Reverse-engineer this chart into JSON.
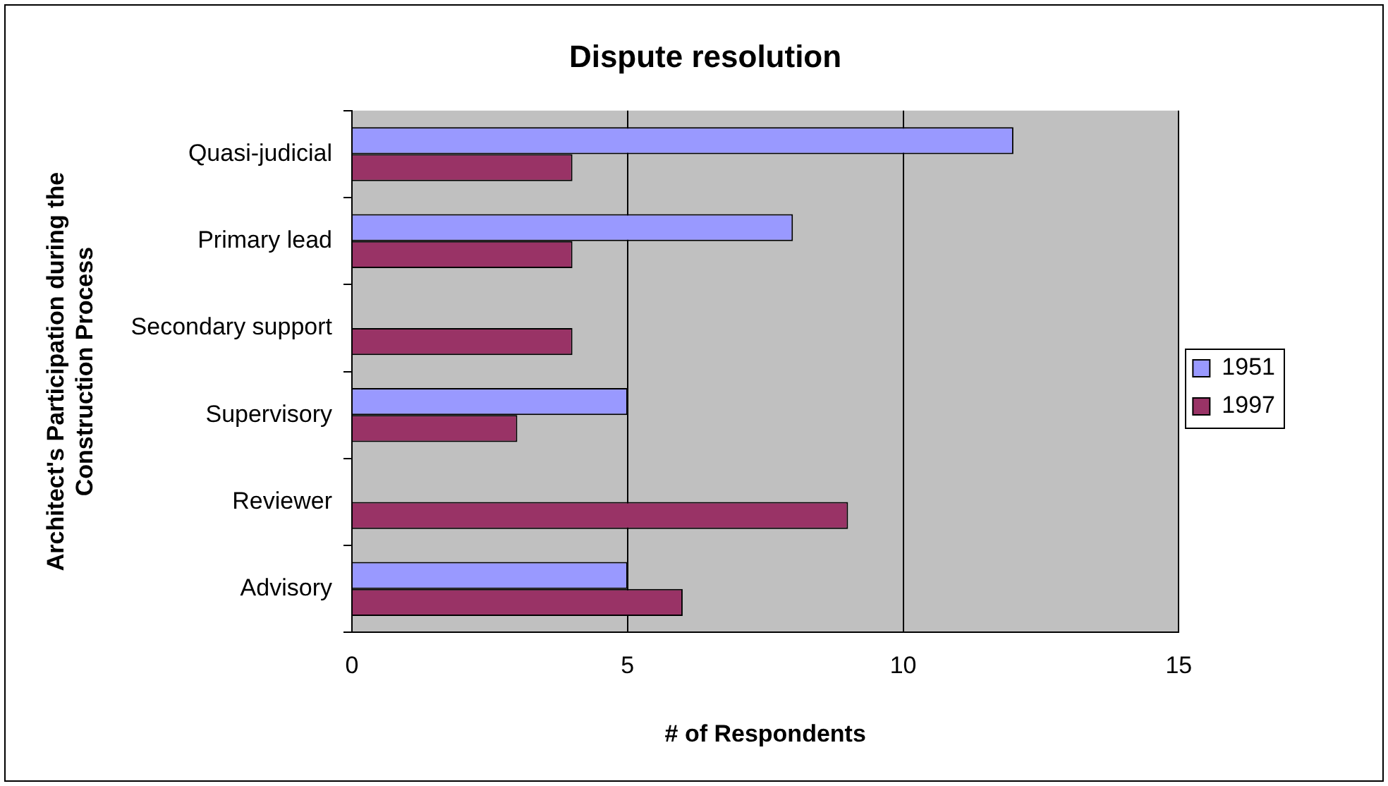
{
  "chart_data": {
    "type": "bar",
    "orientation": "horizontal",
    "title": "Dispute resolution",
    "xlabel": "# of Respondents",
    "ylabel": "Architect's Participation during the Construction Process",
    "categories": [
      "Quasi-judicial",
      "Primary lead",
      "Secondary support",
      "Supervisory",
      "Reviewer",
      "Advisory"
    ],
    "series": [
      {
        "name": "1951",
        "color": "#9999ff",
        "values": [
          12,
          8,
          0,
          5,
          0,
          5
        ]
      },
      {
        "name": "1997",
        "color": "#993366",
        "values": [
          4,
          4,
          4,
          3,
          9,
          6
        ]
      }
    ],
    "xlim": [
      0,
      15
    ],
    "xticks": [
      0,
      5,
      10,
      15
    ],
    "grid": "x",
    "legend": "right"
  }
}
